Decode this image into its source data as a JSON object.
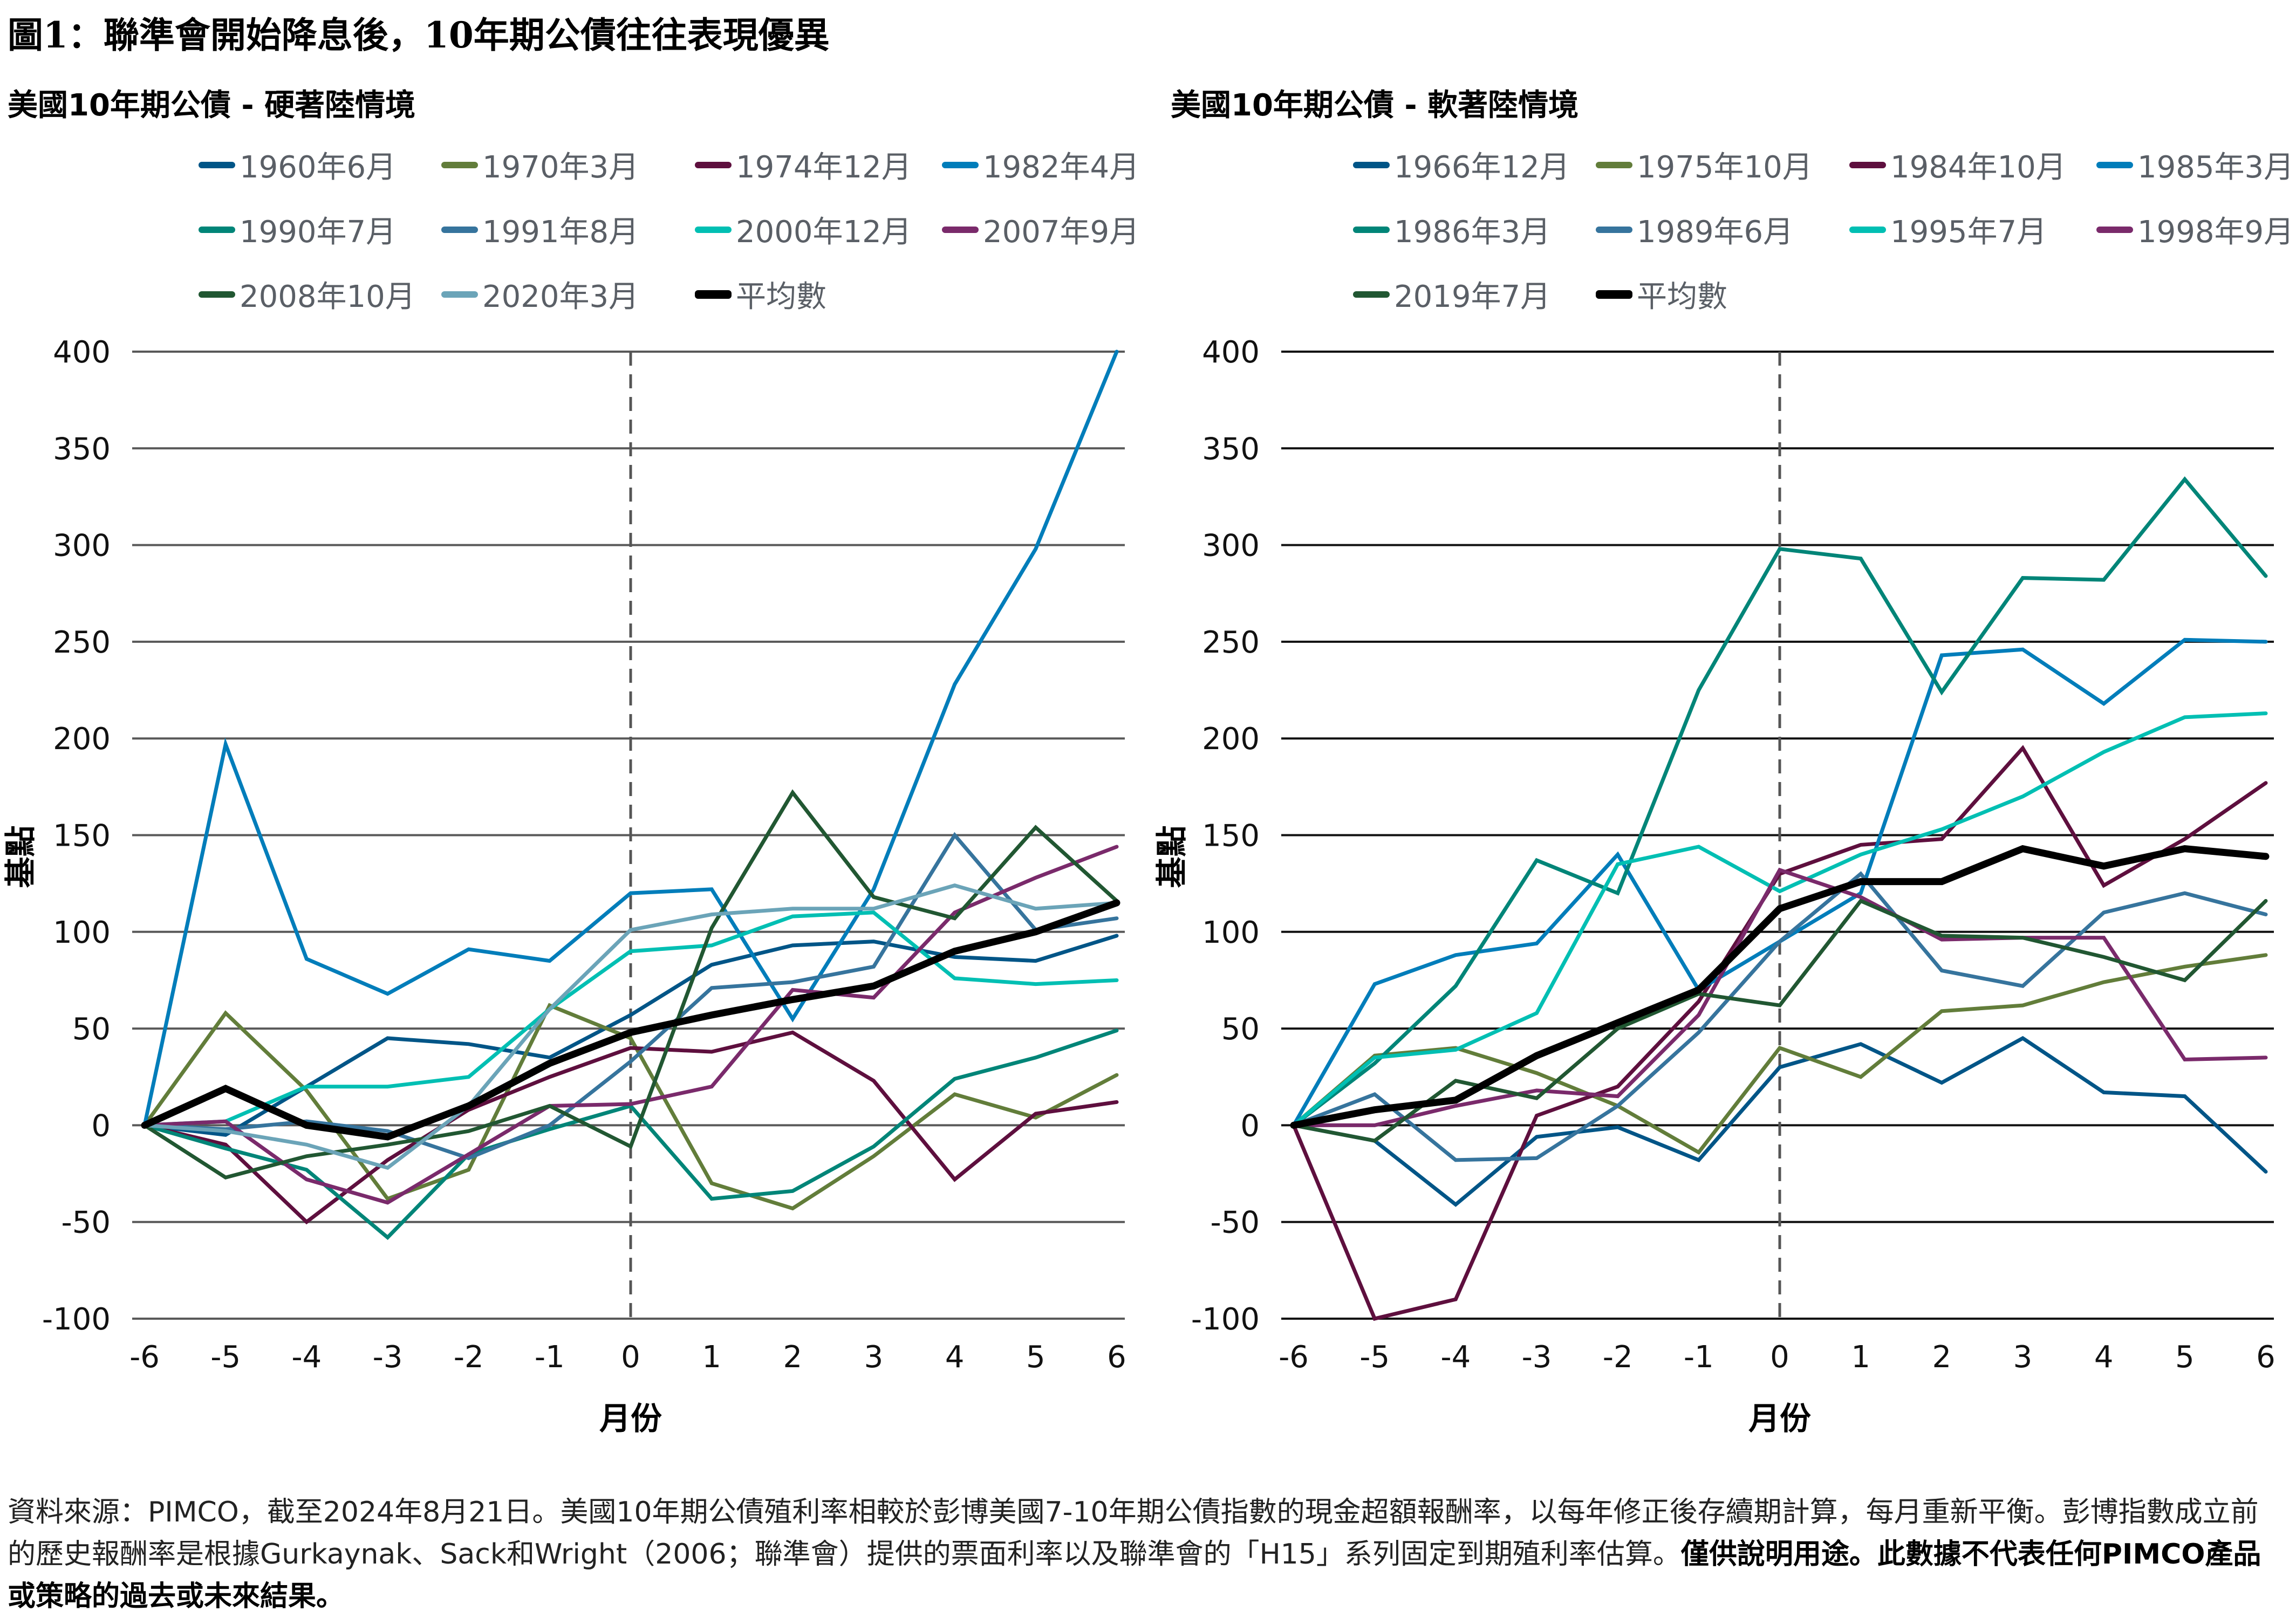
{
  "figure_title": "圖1：聯準會開始降息後，10年期公債往往表現優異",
  "footer": {
    "normal": "資料來源：PIMCO，截至2024年8月21日。美國10年期公債殖利率相較於彭博美國7-10年期公債指數的現金超額報酬率，以每年修正後存續期計算，每月重新平衡。彭博指數成立前的歷史報酬率是根據Gurkaynak、Sack和Wright（2006；聯準會）提供的票面利率以及聯準會的「H15」系列固定到期殖利率估算。",
    "bold": "僅供說明用途。此數據不代表任何PIMCO產品或策略的過去或未來結果。"
  },
  "chart_data": [
    {
      "type": "line",
      "title": "美國10年期公債 - 硬著陸情境",
      "xlabel": "月份",
      "ylabel": "基點",
      "x": [
        -6,
        -5,
        -4,
        -3,
        -2,
        -1,
        0,
        1,
        2,
        3,
        4,
        5,
        6
      ],
      "ylim": [
        -100,
        400
      ],
      "yticks": [
        400,
        350,
        300,
        250,
        200,
        150,
        100,
        50,
        0,
        -50,
        -100
      ],
      "grid": true,
      "vline_x": 0,
      "legend_position": "top",
      "series": [
        {
          "name": "1960年6月",
          "color": "#005587",
          "values": [
            0,
            -5,
            20,
            45,
            42,
            35,
            57,
            83,
            93,
            95,
            87,
            85,
            98
          ]
        },
        {
          "name": "1970年3月",
          "color": "#627d3a",
          "values": [
            0,
            58,
            18,
            -38,
            -23,
            62,
            45,
            -30,
            -43,
            -16,
            16,
            4,
            26
          ]
        },
        {
          "name": "1974年12月",
          "color": "#5e0f3e",
          "values": [
            0,
            -10,
            -50,
            -18,
            8,
            25,
            40,
            38,
            48,
            23,
            -28,
            6,
            12
          ]
        },
        {
          "name": "1982年4月",
          "color": "#007dba",
          "values": [
            0,
            197,
            86,
            68,
            91,
            85,
            120,
            122,
            55,
            122,
            228,
            298,
            400
          ]
        },
        {
          "name": "1990年7月",
          "color": "#008578",
          "values": [
            0,
            -12,
            -23,
            -58,
            -15,
            -2,
            10,
            -38,
            -34,
            -11,
            24,
            35,
            49
          ]
        },
        {
          "name": "1991年8月",
          "color": "#36749d",
          "values": [
            0,
            -2,
            2,
            -3,
            -17,
            0,
            33,
            71,
            74,
            82,
            150,
            101,
            107
          ]
        },
        {
          "name": "2000年12月",
          "color": "#00bfb3",
          "values": [
            0,
            2,
            20,
            20,
            25,
            60,
            90,
            93,
            108,
            110,
            76,
            73,
            75
          ]
        },
        {
          "name": "2007年9月",
          "color": "#7a2a6b",
          "values": [
            0,
            2,
            -28,
            -40,
            -15,
            10,
            11,
            20,
            70,
            66,
            110,
            128,
            144
          ]
        },
        {
          "name": "2008年10月",
          "color": "#215732",
          "values": [
            0,
            -27,
            -16,
            -10,
            -3,
            10,
            -11,
            102,
            172,
            118,
            107,
            154,
            116
          ]
        },
        {
          "name": "2020年3月",
          "color": "#6ba4b8",
          "values": [
            0,
            -3,
            -10,
            -22,
            10,
            60,
            101,
            109,
            112,
            112,
            124,
            112,
            115
          ]
        },
        {
          "name": "平均數",
          "color": "#000000",
          "values": [
            0,
            19,
            0,
            -6,
            10,
            32,
            48,
            57,
            65,
            72,
            90,
            100,
            115
          ]
        }
      ]
    },
    {
      "type": "line",
      "title": "美國10年期公債 - 軟著陸情境",
      "xlabel": "月份",
      "ylabel": "基點",
      "x": [
        -6,
        -5,
        -4,
        -3,
        -2,
        -1,
        0,
        1,
        2,
        3,
        4,
        5,
        6
      ],
      "ylim": [
        -100,
        400
      ],
      "yticks": [
        400,
        350,
        300,
        250,
        200,
        150,
        100,
        50,
        0,
        -50,
        -100
      ],
      "grid": true,
      "vline_x": 0,
      "legend_position": "top",
      "series": [
        {
          "name": "1966年12月",
          "color": "#005587",
          "values": [
            0,
            -8,
            -41,
            -6,
            -1,
            -18,
            30,
            42,
            22,
            45,
            17,
            15,
            -24
          ]
        },
        {
          "name": "1975年10月",
          "color": "#627d3a",
          "values": [
            0,
            36,
            40,
            27,
            10,
            -14,
            40,
            25,
            59,
            62,
            74,
            82,
            88
          ]
        },
        {
          "name": "1984年10月",
          "color": "#5e0f3e",
          "values": [
            0,
            -100,
            -90,
            5,
            20,
            64,
            130,
            145,
            148,
            195,
            124,
            148,
            177
          ]
        },
        {
          "name": "1985年3月",
          "color": "#007dba",
          "values": [
            0,
            73,
            88,
            94,
            140,
            70,
            95,
            120,
            243,
            246,
            218,
            251,
            250
          ]
        },
        {
          "name": "1986年3月",
          "color": "#008578",
          "values": [
            0,
            32,
            72,
            137,
            120,
            225,
            298,
            293,
            224,
            283,
            282,
            334,
            284
          ]
        },
        {
          "name": "1989年6月",
          "color": "#36749d",
          "values": [
            0,
            16,
            -18,
            -17,
            10,
            48,
            95,
            130,
            80,
            72,
            110,
            120,
            109
          ]
        },
        {
          "name": "1995年7月",
          "color": "#00bfb3",
          "values": [
            0,
            35,
            39,
            58,
            135,
            144,
            121,
            140,
            153,
            170,
            193,
            211,
            213
          ]
        },
        {
          "name": "1998年9月",
          "color": "#7a2a6b",
          "values": [
            0,
            0,
            10,
            18,
            15,
            57,
            132,
            118,
            96,
            97,
            97,
            34,
            35
          ]
        },
        {
          "name": "2019年7月",
          "color": "#215732",
          "values": [
            0,
            -8,
            23,
            14,
            50,
            68,
            62,
            116,
            98,
            97,
            87,
            75,
            116
          ]
        },
        {
          "name": "平均數",
          "color": "#000000",
          "values": [
            0,
            8,
            13,
            36,
            53,
            70,
            112,
            126,
            126,
            143,
            134,
            143,
            139
          ]
        }
      ]
    }
  ]
}
